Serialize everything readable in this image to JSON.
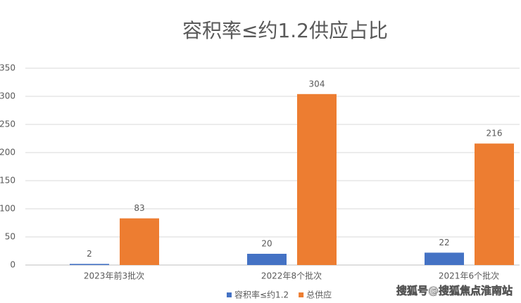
{
  "chart_data": {
    "type": "bar",
    "title": "容积率≤约1.2供应占比",
    "categories": [
      "2023年前3批次",
      "2022年8个批次",
      "2021年6个批次"
    ],
    "series": [
      {
        "name": "容积率≤约1.2",
        "color": "#4472c4",
        "values": [
          2,
          20,
          22
        ]
      },
      {
        "name": "总供应",
        "color": "#ed7d31",
        "values": [
          83,
          304,
          216
        ]
      }
    ],
    "ylim": [
      0,
      350
    ],
    "yticks": [
      0,
      50,
      100,
      150,
      200,
      250,
      300,
      350
    ],
    "grid": true,
    "legend": "bottom",
    "watermark": "搜狐号@搜狐焦点淮南站"
  }
}
